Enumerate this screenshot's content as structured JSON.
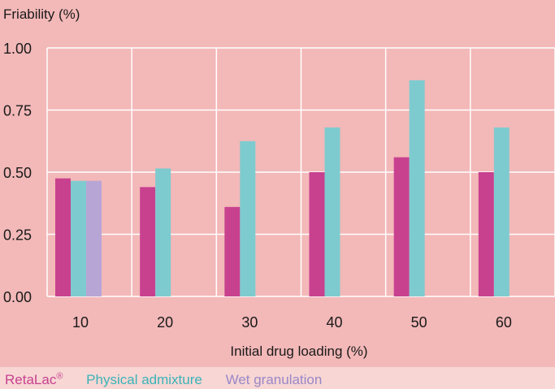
{
  "chart_data": {
    "type": "bar",
    "ylabel": "Friability (%)",
    "xlabel": "Initial drug loading (%)",
    "categories": [
      "10",
      "20",
      "30",
      "40",
      "50",
      "60"
    ],
    "ylim": [
      0,
      1.0
    ],
    "yticks": [
      "0.00",
      "0.25",
      "0.50",
      "0.75",
      "1.00"
    ],
    "yticks_values": [
      0,
      0.25,
      0.5,
      0.75,
      1.0
    ],
    "grid": true,
    "legend_position": "bottom",
    "series": [
      {
        "name": "RetaLac®",
        "color": "#c8418f",
        "values": [
          0.475,
          0.44,
          0.36,
          0.5,
          0.56,
          0.5
        ]
      },
      {
        "name": "Physical admixture",
        "color": "#7ecbcf",
        "values": [
          0.465,
          0.515,
          0.625,
          0.68,
          0.87,
          0.68
        ]
      },
      {
        "name": "Wet granulation",
        "color": "#b7a5d5",
        "values": [
          0.465,
          null,
          null,
          null,
          null,
          null
        ]
      }
    ],
    "colors": {
      "plot_bg": "#f3b8b8",
      "page_bg": "#f7d6d4",
      "grid": "#ffffff"
    }
  },
  "legend": {
    "retalac": "RetaLac",
    "retalac_mark": "®",
    "physical": "Physical admixture",
    "wet": "Wet granulation"
  }
}
